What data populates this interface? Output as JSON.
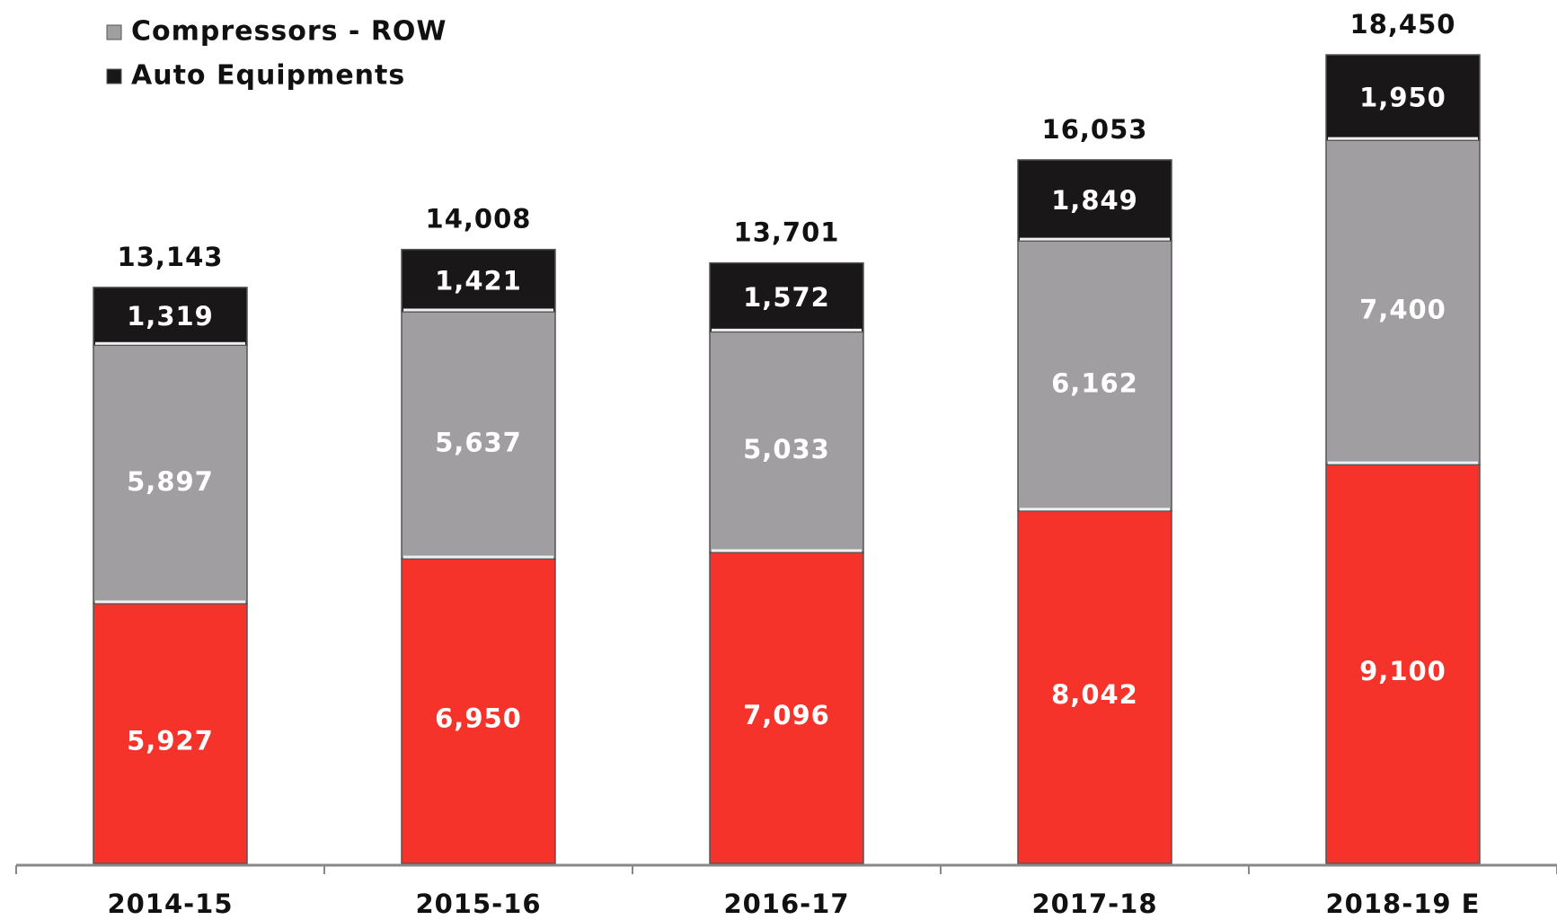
{
  "chart_data": {
    "type": "stacked-bar",
    "categories": [
      "2014-15",
      "2015-16",
      "2016-17",
      "2017-18",
      "2018-19 E"
    ],
    "series": [
      {
        "color": "#f5332a",
        "values": [
          5927,
          6950,
          7096,
          8042,
          9100
        ],
        "value_labels": [
          "5,927",
          "6,950",
          "7,096",
          "8,042",
          "9,100"
        ]
      },
      {
        "name": "Compressors - ROW",
        "color": "#a09ea0",
        "values": [
          5897,
          5637,
          5033,
          6162,
          7400
        ],
        "value_labels": [
          "5,897",
          "5,637",
          "5,033",
          "6,162",
          "7,400"
        ]
      },
      {
        "name": "Auto Equipments",
        "color": "#1a1718",
        "values": [
          1319,
          1421,
          1572,
          1849,
          1950
        ],
        "value_labels": [
          "1,319",
          "1,421",
          "1,572",
          "1,849",
          "1,950"
        ]
      }
    ],
    "totals": [
      13143,
      14008,
      13701,
      16053,
      18450
    ],
    "total_labels": [
      "13,143",
      "14,008",
      "13,701",
      "16,053",
      "18,450"
    ],
    "legend": "top-left"
  }
}
